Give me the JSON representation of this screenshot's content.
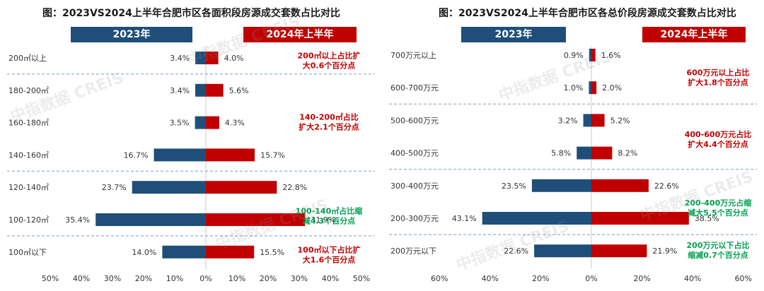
{
  "watermark": "中指数据 CREIS",
  "colors": {
    "y2023": "#1f4e79",
    "y2024": "#c00000",
    "green": "#00a050",
    "red_note": "#c00000"
  },
  "chart_data": [
    {
      "type": "bar",
      "orientation": "horizontal-butterfly",
      "title": "图：2023VS2024上半年合肥市区各面积段房源成交套数占比对比",
      "legend": [
        "2023年",
        "2024年上半年"
      ],
      "categories": [
        "200㎡以上",
        "180-200㎡",
        "160-180㎡",
        "140-160㎡",
        "120-140㎡",
        "100-120㎡",
        "100㎡以下"
      ],
      "series": [
        {
          "name": "2023年",
          "values": [
            3.4,
            3.4,
            3.5,
            16.7,
            23.7,
            35.4,
            14.0
          ],
          "labels": [
            "3.4%",
            "3.4%",
            "3.5%",
            "16.7%",
            "23.7%",
            "35.4%",
            "14.0%"
          ]
        },
        {
          "name": "2024年上半年",
          "values": [
            4.0,
            5.6,
            4.3,
            15.7,
            22.8,
            31.9,
            15.5
          ],
          "labels": [
            "4.0%",
            "5.6%",
            "4.3%",
            "15.7%",
            "22.8%",
            "31.9%",
            "15.5%"
          ]
        }
      ],
      "xticks": [
        "50%",
        "40%",
        "30%",
        "20%",
        "10%",
        "0%",
        "10%",
        "20%",
        "30%",
        "40%",
        "50%"
      ],
      "xlim": [
        -50,
        50
      ],
      "annotations": [
        {
          "lines": [
            "200㎡以上占比扩",
            "大0.6个百分点"
          ],
          "color": "red",
          "row": 0.1
        },
        {
          "lines": [
            "140-200㎡占比",
            "扩大2.1个百分点"
          ],
          "color": "red",
          "row": 2.0
        },
        {
          "lines": [
            "100-140㎡占比缩",
            "减4.3个百分点"
          ],
          "color": "green",
          "row": 4.9
        },
        {
          "lines": [
            "100㎡以下占比扩",
            "大1.6个百分点"
          ],
          "color": "red",
          "row": 6.1
        }
      ],
      "separators_after": [
        0,
        3,
        5
      ]
    },
    {
      "type": "bar",
      "orientation": "horizontal-butterfly",
      "title": "图：2023VS2024上半年合肥市区各总价段房源成交套数占比对比",
      "legend": [
        "2023年",
        "2024年上半年"
      ],
      "categories": [
        "700万元以上",
        "600-700万元",
        "500-600万元",
        "400-500万元",
        "300-400万元",
        "200-300万元",
        "200万元以下"
      ],
      "series": [
        {
          "name": "2023年",
          "values": [
            0.9,
            1.0,
            3.2,
            5.8,
            23.5,
            43.1,
            22.6
          ],
          "labels": [
            "0.9%",
            "1.0%",
            "3.2%",
            "5.8%",
            "23.5%",
            "43.1%",
            "22.6%"
          ]
        },
        {
          "name": "2024年上半年",
          "values": [
            1.6,
            2.0,
            5.2,
            8.2,
            22.6,
            38.5,
            21.9
          ],
          "labels": [
            "1.6%",
            "2.0%",
            "5.2%",
            "8.2%",
            "22.6%",
            "38.5%",
            "21.9%"
          ]
        }
      ],
      "xticks": [
        "60%",
        "40%",
        "20%",
        "0%",
        "20%",
        "40%",
        "60%"
      ],
      "xlim": [
        -60,
        60
      ],
      "annotations": [
        {
          "lines": [
            "600万元以上占比",
            "扩大1.8个百分点"
          ],
          "color": "red",
          "row": 0.7
        },
        {
          "lines": [
            "400-600万元占比",
            "扩大4.4个百分点"
          ],
          "color": "red",
          "row": 2.6
        },
        {
          "lines": [
            "200-400万元占缩",
            "减大5.5个百分点"
          ],
          "color": "green",
          "row": 4.7
        },
        {
          "lines": [
            "200万元以下占比",
            "缩减0.7个百分点"
          ],
          "color": "green",
          "row": 6.0
        }
      ],
      "separators_after": [
        1,
        3,
        5
      ]
    }
  ]
}
